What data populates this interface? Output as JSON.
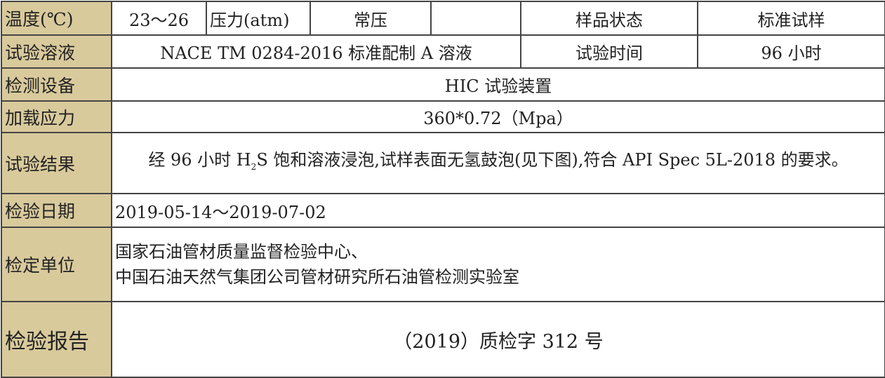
{
  "rows": {
    "temperature": {
      "label": "温度(℃)",
      "value": "23～26",
      "pressure_label": "压力(atm)",
      "pressure_value": "常压",
      "sample_state_label": "样品状态",
      "sample_state_value": "标准试样"
    },
    "solution": {
      "label": "试验溶液",
      "value": "NACE TM 0284-2016 标准配制 A 溶液",
      "time_label": "试验时间",
      "time_value": "96 小时"
    },
    "equipment": {
      "label": "检测设备",
      "value": "HIC 试验装置"
    },
    "stress": {
      "label": "加载应力",
      "value": "360*0.72（Mpa）"
    },
    "result": {
      "label": "试验结果",
      "value_part1": "经 96 小时 H",
      "value_sub": "2",
      "value_part2": "S 饱和溶液浸泡,试样表面无氢鼓泡(见下图),符合 API Spec 5L-2018 的要求。"
    },
    "date": {
      "label": "检验日期",
      "value": "2019-05-14～2019-07-02"
    },
    "unit": {
      "label": "检定单位",
      "line1": "国家石油管材质量监督检验中心、",
      "line2": "中国石油天然气集团公司管材研究所石油管检测实验室"
    },
    "report": {
      "label": "检验报告",
      "value": "（2019）质检字 312 号"
    }
  },
  "colors": {
    "label_background": "#d9ca9c",
    "border": "#444444"
  }
}
